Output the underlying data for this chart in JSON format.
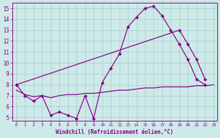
{
  "background_color": "#ceeae8",
  "grid_color": "#aad4d2",
  "line_color": "#880088",
  "xlabel": "Windchill (Refroidissement éolien,°C)",
  "ylim_min": 4.7,
  "ylim_max": 15.5,
  "xlim_min": -0.5,
  "xlim_max": 23.4,
  "yticks": [
    5,
    6,
    7,
    8,
    9,
    10,
    11,
    12,
    13,
    14,
    15
  ],
  "xticks": [
    0,
    1,
    2,
    3,
    4,
    5,
    6,
    7,
    8,
    9,
    10,
    11,
    12,
    13,
    14,
    15,
    16,
    17,
    18,
    19,
    20,
    21,
    22,
    23
  ],
  "line1_x": [
    0,
    1,
    2,
    3,
    4,
    5,
    6,
    7,
    8,
    9,
    10,
    11,
    12,
    13,
    14,
    15,
    16,
    17,
    18,
    19,
    20,
    21,
    22
  ],
  "line1_y": [
    8.0,
    7.0,
    6.5,
    7.0,
    5.2,
    5.5,
    5.2,
    4.9,
    7.0,
    4.9,
    8.2,
    9.5,
    10.8,
    13.3,
    14.2,
    15.0,
    15.2,
    14.3,
    13.0,
    11.7,
    10.3,
    8.5,
    8.0
  ],
  "line2_x": [
    0,
    19,
    20,
    21,
    22
  ],
  "line2_y": [
    8.0,
    13.0,
    11.7,
    10.3,
    8.5
  ],
  "line3_x": [
    0,
    1,
    2,
    3,
    4,
    5,
    6,
    7,
    8,
    9,
    10,
    11,
    12,
    13,
    14,
    15,
    16,
    17,
    18,
    19,
    20,
    21,
    22,
    23
  ],
  "line3_y": [
    7.5,
    7.1,
    6.9,
    7.0,
    6.8,
    7.0,
    7.1,
    7.1,
    7.2,
    7.2,
    7.3,
    7.4,
    7.5,
    7.5,
    7.6,
    7.7,
    7.7,
    7.8,
    7.8,
    7.8,
    7.8,
    7.9,
    7.9,
    8.0
  ]
}
